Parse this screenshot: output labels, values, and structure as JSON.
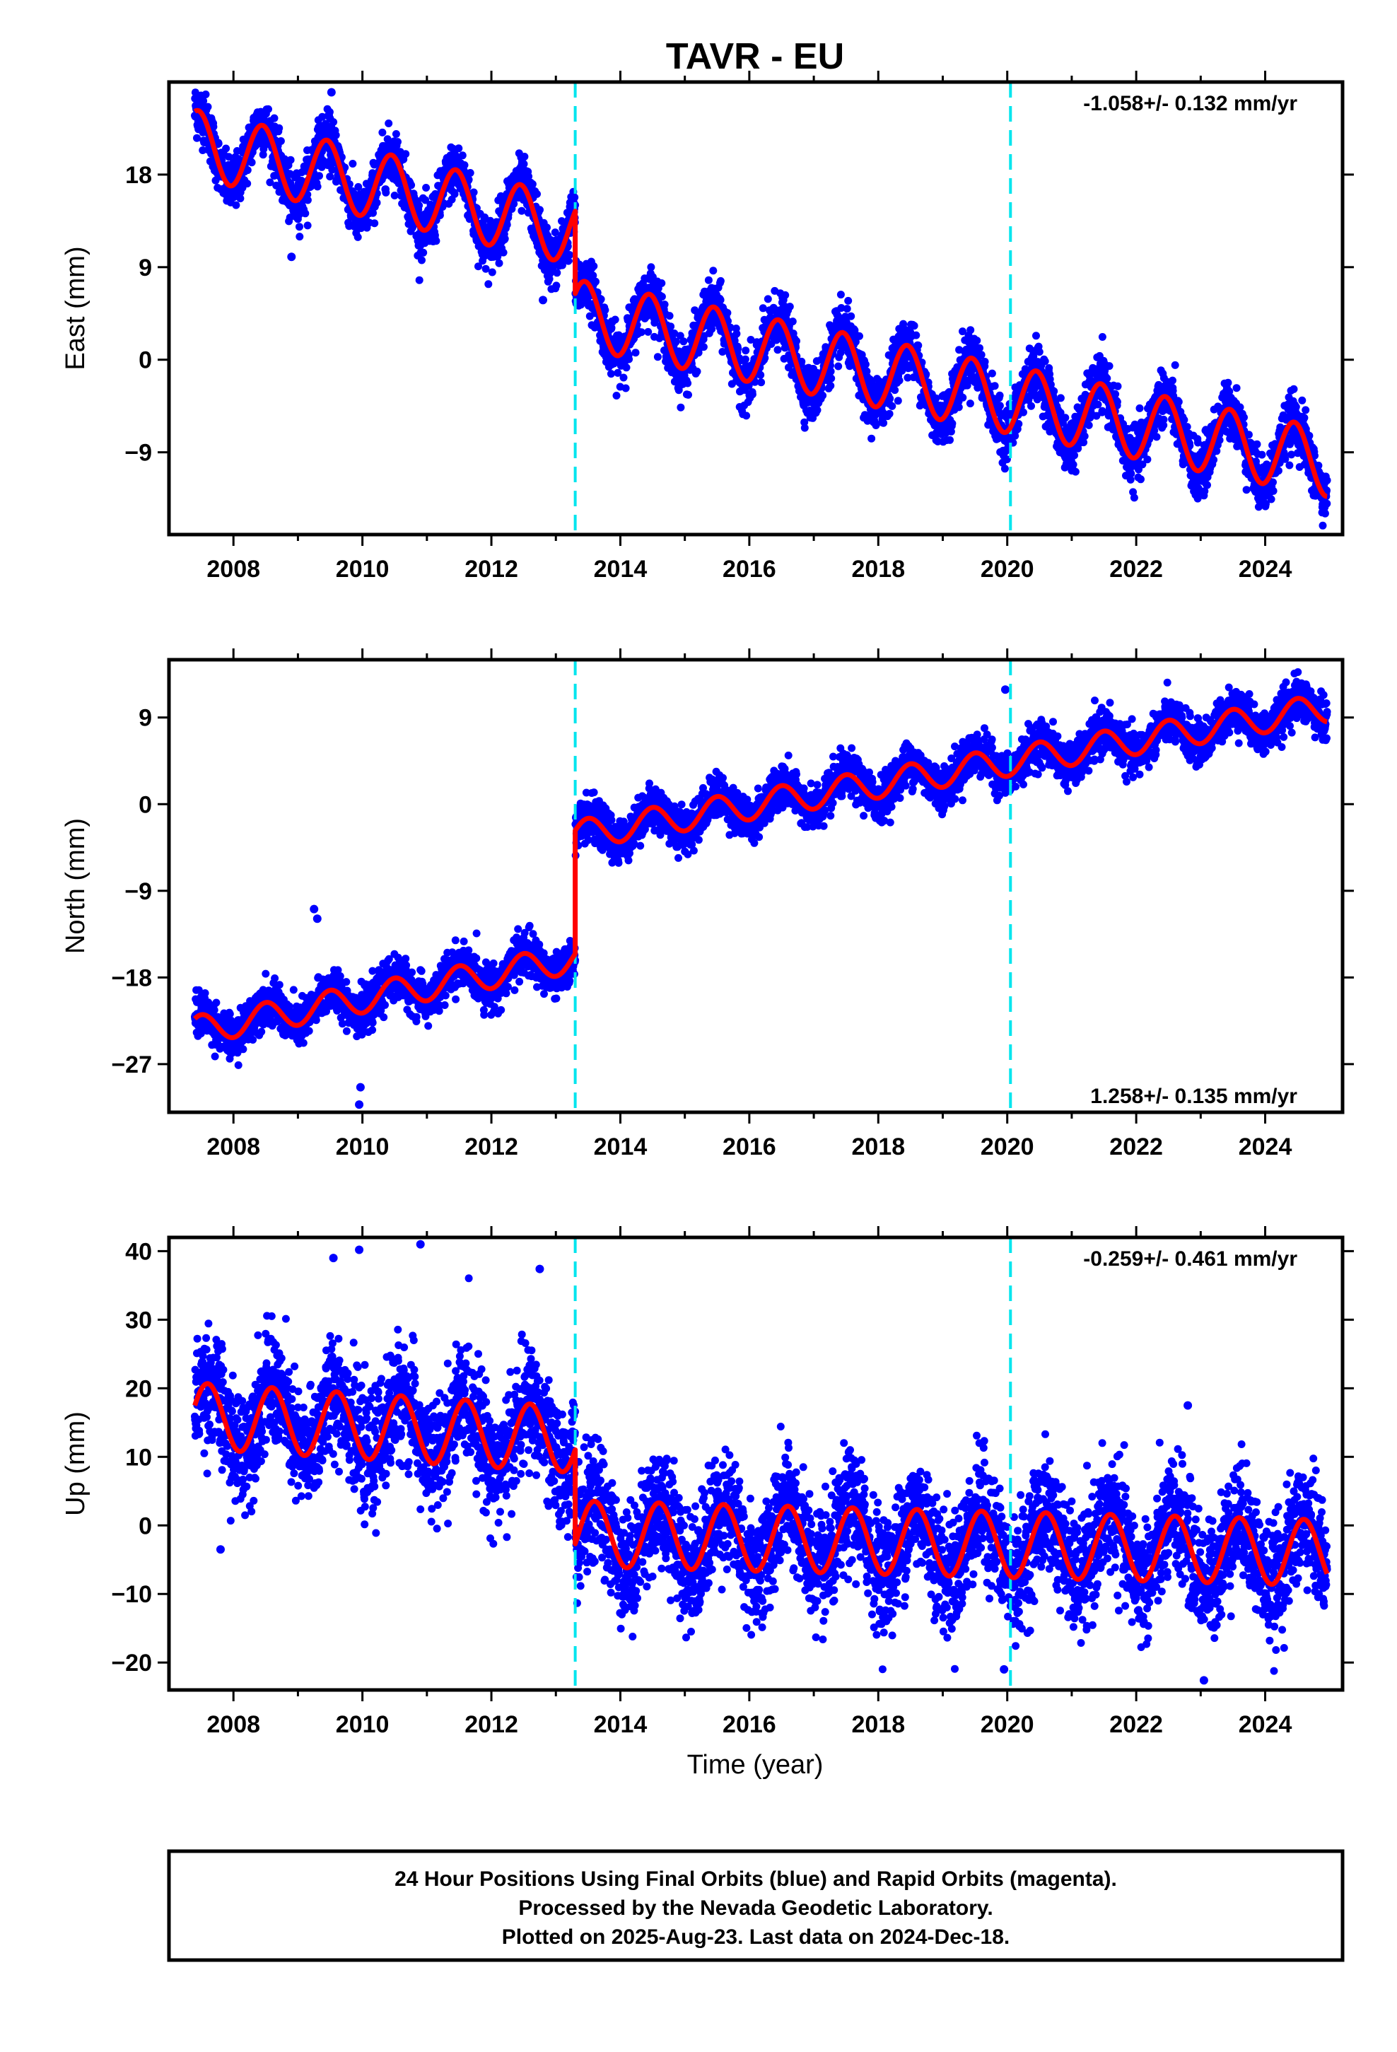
{
  "title": "TAVR - EU",
  "xlabel": "Time (year)",
  "footer": [
    "24 Hour Positions Using Final Orbits (blue) and Rapid Orbits (magenta).",
    "Processed by the Nevada Geodetic Laboratory.",
    "Plotted on 2025-Aug-23. Last data on 2024-Dec-18."
  ],
  "colors": {
    "data": "#0000ff",
    "model": "#ff0000",
    "event": "#00e5ee",
    "frame": "#000000"
  },
  "chart_data": [
    {
      "type": "scatter",
      "ylabel": "East (mm)",
      "rate": "-1.058+/- 0.132 mm/yr",
      "xlim": [
        2007.0,
        2025.2
      ],
      "ylim": [
        -17,
        27
      ],
      "xticks": [
        2008,
        2010,
        2012,
        2014,
        2016,
        2018,
        2020,
        2022,
        2024
      ],
      "yticks": [
        -9,
        0,
        9,
        18
      ],
      "event_lines": [
        2013.3,
        2020.05
      ],
      "data_range": [
        2007.4,
        2024.96
      ],
      "model": {
        "segments": [
          {
            "x": [
              2007.4,
              2013.3
            ],
            "start": 21.0,
            "end": 12.5
          },
          {
            "x": [
              2013.3,
              2024.96
            ],
            "start": 4.5,
            "end": -10.0
          }
        ],
        "seasonal_amplitude": 3.3,
        "seasonal_phase_year_fraction": 0.45
      },
      "scatter_sigma": 1.3,
      "outliers": [
        [
          2009.52,
          26.0
        ],
        [
          2012.8,
          5.8
        ],
        [
          2008.9,
          10.0
        ]
      ]
    },
    {
      "type": "scatter",
      "ylabel": "North (mm)",
      "rate": "1.258+/- 0.135 mm/yr",
      "xlim": [
        2007.0,
        2025.2
      ],
      "ylim": [
        -32,
        15
      ],
      "xticks": [
        2008,
        2010,
        2012,
        2014,
        2016,
        2018,
        2020,
        2022,
        2024
      ],
      "yticks": [
        -27,
        -18,
        -9,
        0,
        9
      ],
      "event_lines": [
        2013.3,
        2020.05
      ],
      "data_range": [
        2007.4,
        2024.96
      ],
      "model": {
        "segments": [
          {
            "x": [
              2007.4,
              2013.3
            ],
            "start": -23.5,
            "end": -16.0
          },
          {
            "x": [
              2013.3,
              2024.96
            ],
            "start": -3.2,
            "end": 10.0
          }
        ],
        "seasonal_amplitude": 1.5,
        "seasonal_phase_year_fraction": 0.5
      },
      "scatter_sigma": 1.1,
      "outliers": [
        [
          2009.25,
          -10.9
        ],
        [
          2009.3,
          -11.9
        ],
        [
          2009.97,
          -29.4
        ],
        [
          2009.95,
          -31.2
        ],
        [
          2019.97,
          11.9
        ]
      ]
    },
    {
      "type": "scatter",
      "ylabel": "Up (mm)",
      "rate": "-0.259+/- 0.461 mm/yr",
      "xlim": [
        2007.0,
        2025.2
      ],
      "ylim": [
        -24,
        42
      ],
      "xticks": [
        2008,
        2010,
        2012,
        2014,
        2016,
        2018,
        2020,
        2022,
        2024
      ],
      "yticks": [
        -20,
        -10,
        0,
        10,
        20,
        30,
        40
      ],
      "event_lines": [
        2013.3,
        2020.05
      ],
      "data_range": [
        2007.4,
        2024.96
      ],
      "model": {
        "segments": [
          {
            "x": [
              2007.4,
              2013.3
            ],
            "start": 16.0,
            "end": 12.5
          },
          {
            "x": [
              2013.3,
              2024.96
            ],
            "start": -1.2,
            "end": -4.0
          }
        ],
        "seasonal_amplitude": 4.8,
        "seasonal_phase_year_fraction": 0.6
      },
      "scatter_sigma": 4.2,
      "outliers": [
        [
          2009.55,
          39.0
        ],
        [
          2009.95,
          40.2
        ],
        [
          2010.9,
          41.0
        ],
        [
          2012.75,
          37.4
        ],
        [
          2022.8,
          17.5
        ],
        [
          2023.05,
          -22.6
        ],
        [
          2019.95,
          -21.0
        ],
        [
          2007.8,
          -3.5
        ]
      ]
    }
  ]
}
